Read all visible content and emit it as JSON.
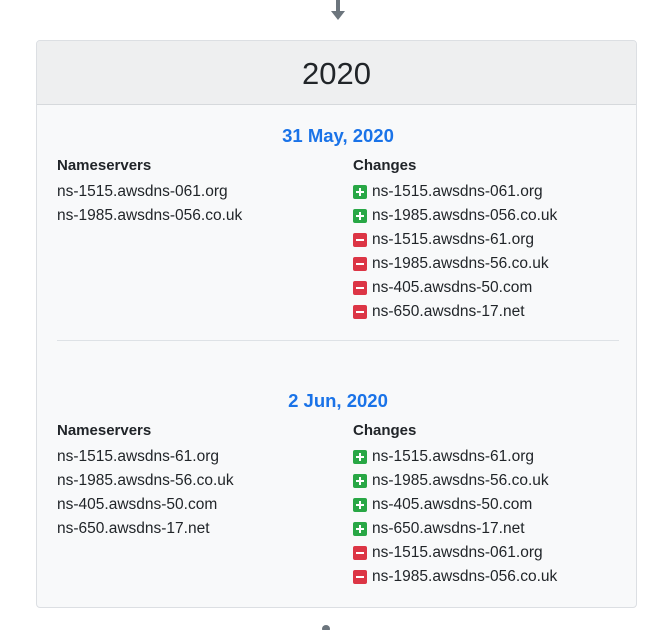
{
  "year": "2020",
  "entries": [
    {
      "date": "31 May, 2020",
      "nameservers_title": "Nameservers",
      "changes_title": "Changes",
      "nameservers": [
        "ns-1515.awsdns-061.org",
        "ns-1985.awsdns-056.co.uk"
      ],
      "changes": [
        {
          "type": "added",
          "icon": "plus-square-icon",
          "value": "ns-1515.awsdns-061.org"
        },
        {
          "type": "added",
          "icon": "plus-square-icon",
          "value": "ns-1985.awsdns-056.co.uk"
        },
        {
          "type": "removed",
          "icon": "minus-square-icon",
          "value": "ns-1515.awsdns-61.org"
        },
        {
          "type": "removed",
          "icon": "minus-square-icon",
          "value": "ns-1985.awsdns-56.co.uk"
        },
        {
          "type": "removed",
          "icon": "minus-square-icon",
          "value": "ns-405.awsdns-50.com"
        },
        {
          "type": "removed",
          "icon": "minus-square-icon",
          "value": "ns-650.awsdns-17.net"
        }
      ]
    },
    {
      "date": "2 Jun, 2020",
      "nameservers_title": "Nameservers",
      "changes_title": "Changes",
      "nameservers": [
        "ns-1515.awsdns-61.org",
        "ns-1985.awsdns-56.co.uk",
        "ns-405.awsdns-50.com",
        "ns-650.awsdns-17.net"
      ],
      "changes": [
        {
          "type": "added",
          "icon": "plus-square-icon",
          "value": "ns-1515.awsdns-61.org"
        },
        {
          "type": "added",
          "icon": "plus-square-icon",
          "value": "ns-1985.awsdns-56.co.uk"
        },
        {
          "type": "added",
          "icon": "plus-square-icon",
          "value": "ns-405.awsdns-50.com"
        },
        {
          "type": "added",
          "icon": "plus-square-icon",
          "value": "ns-650.awsdns-17.net"
        },
        {
          "type": "removed",
          "icon": "minus-square-icon",
          "value": "ns-1515.awsdns-061.org"
        },
        {
          "type": "removed",
          "icon": "minus-square-icon",
          "value": "ns-1985.awsdns-056.co.uk"
        }
      ]
    }
  ],
  "colors": {
    "date": "#1a73e8",
    "added": "#28a745",
    "removed": "#dc3545"
  }
}
